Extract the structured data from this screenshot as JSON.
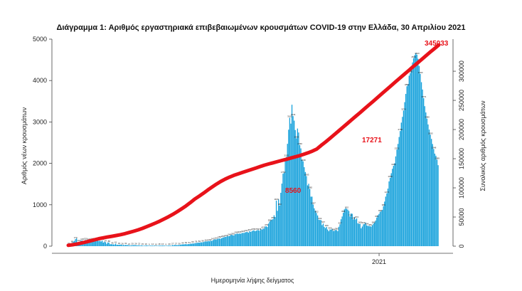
{
  "chart_data": {
    "type": "bar",
    "title": "Διάγραμμα 1: Αριθμός εργαστηριακά επιβεβαιωμένων κρουσμάτων COVID-19 στην Ελλάδα, 30 Απριλίου 2021",
    "xlabel": "Ημερομηνία λήψης δείγματος",
    "ylabel": "Αριθμός νέων κρουσμάτων",
    "y2label": "Συνολικός αριθμός κρουσμάτων",
    "ylim": [
      0,
      5000
    ],
    "y2lim": [
      0,
      355000
    ],
    "yticks": [
      0,
      1000,
      2000,
      3000,
      4000,
      5000
    ],
    "y2ticks": [
      0,
      50000,
      100000,
      150000,
      200000,
      250000,
      300000
    ],
    "xtick_labels": [
      "2021"
    ],
    "xtick_index": 278,
    "colors": {
      "bars": "#1aa3dc",
      "cumulative": "#e8121a"
    },
    "series": [
      {
        "type": "bar",
        "axis": "left",
        "values": [
          31,
          42,
          55,
          80,
          110,
          126,
          170,
          188,
          90,
          101,
          95,
          140,
          140,
          126,
          130,
          150,
          125,
          151,
          140,
          135,
          113,
          146,
          161,
          142,
          118,
          152,
          134,
          126,
          129,
          112,
          136,
          87,
          110,
          97,
          56,
          89,
          88,
          45,
          50,
          45,
          42,
          38,
          61,
          33,
          35,
          33,
          38,
          36,
          26,
          29,
          25,
          31,
          27,
          27,
          21,
          19,
          19,
          25,
          24,
          25,
          26,
          18,
          20,
          22,
          14,
          21,
          15,
          11,
          12,
          19,
          20,
          13,
          9,
          14,
          15,
          14,
          14,
          14,
          10,
          12,
          9,
          18,
          13,
          17,
          16,
          18,
          12,
          9,
          11,
          14,
          20,
          13,
          14,
          27,
          22,
          30,
          27,
          26,
          26,
          30,
          32,
          41,
          44,
          45,
          45,
          54,
          43,
          52,
          51,
          57,
          60,
          66,
          65,
          73,
          78,
          81,
          87,
          84,
          92,
          92,
          96,
          101,
          113,
          116,
          113,
          128,
          118,
          134,
          128,
          142,
          154,
          168,
          162,
          169,
          186,
          186,
          181,
          193,
          209,
          214,
          225,
          226,
          244,
          241,
          246,
          263,
          276,
          265,
          261,
          290,
          298,
          303,
          298,
          306,
          301,
          313,
          323,
          319,
          333,
          341,
          346,
          325,
          364,
          346,
          359,
          378,
          383,
          362,
          375,
          388,
          387,
          375,
          418,
          397,
          421,
          423,
          476,
          479,
          461,
          545,
          595,
          625,
          640,
          654,
          746,
          703,
          1100,
          854,
          1130,
          982,
          1289,
          1511,
          1750,
          1774,
          2088,
          2153,
          2472,
          2813,
          3102,
          2960,
          3416,
          3141,
          3032,
          2804,
          2603,
          2841,
          2745,
          2440,
          2361,
          2084,
          2049,
          1908,
          1790,
          1693,
          1469,
          1508,
          1382,
          1196,
          1196,
          1007,
          915,
          856,
          802,
          742,
          640,
          632,
          630,
          509,
          547,
          463,
          437,
          466,
          402,
          362,
          404,
          399,
          419,
          369,
          371,
          392,
          389,
          363,
          468,
          527,
          650,
          717,
          806,
          889,
          915,
          902,
          884,
          851,
          714,
          791,
          782,
          648,
          701,
          645,
          672,
          553,
          541,
          542,
          432,
          475,
          529,
          536,
          566,
          504,
          490,
          487,
          483,
          473,
          509,
          545,
          570,
          620,
          691,
          749,
          779,
          828,
          847,
          877,
          966,
          1077,
          1197,
          1274,
          1390,
          1565,
          1650,
          1761,
          1869,
          1940,
          2002,
          2168,
          2332,
          2469,
          2637,
          2780,
          2984,
          3123,
          3274,
          3478,
          3677,
          3862,
          3911,
          4118,
          4180,
          4355,
          4436,
          4540,
          4617,
          4661,
          4623,
          4527,
          4351,
          4160,
          3960,
          3783,
          3573,
          3381,
          3230,
          3080,
          2940,
          2815,
          2693,
          2591,
          2467,
          2348,
          2235,
          2185,
          2089,
          1956
        ]
      },
      {
        "type": "line",
        "axis": "right",
        "values": [
          1500,
          2500,
          3800,
          5400,
          7100,
          8900,
          10900,
          12800,
          14300,
          15700,
          17000,
          18300,
          19800,
          21500,
          23500,
          25600,
          27900,
          30500,
          33400,
          36500,
          39700,
          43000,
          46600,
          50500,
          54700,
          59200,
          64000,
          69100,
          74700,
          80700,
          85600,
          90800,
          96200,
          101500,
          106500,
          111000,
          115000,
          118500,
          121500,
          124000,
          126500,
          129000,
          131500,
          134000,
          136500,
          139000,
          141000,
          143000,
          145000,
          147000,
          149000,
          151000,
          153000,
          155000,
          157500,
          160000,
          163000,
          166500,
          172770,
          178500,
          184700,
          191000,
          197400,
          203800,
          210200,
          216600,
          223000,
          229400,
          235900,
          242300,
          248800,
          255300,
          261800,
          268300,
          274800,
          281300,
          287800,
          294200,
          300600,
          307000,
          313400,
          319800,
          326200,
          332600,
          338800,
          345033
        ],
        "start_index": 0,
        "start_value": 0
      }
    ],
    "annotations": [
      {
        "text": "8560"
      },
      {
        "text": "17271"
      },
      {
        "text": "345033"
      }
    ]
  }
}
